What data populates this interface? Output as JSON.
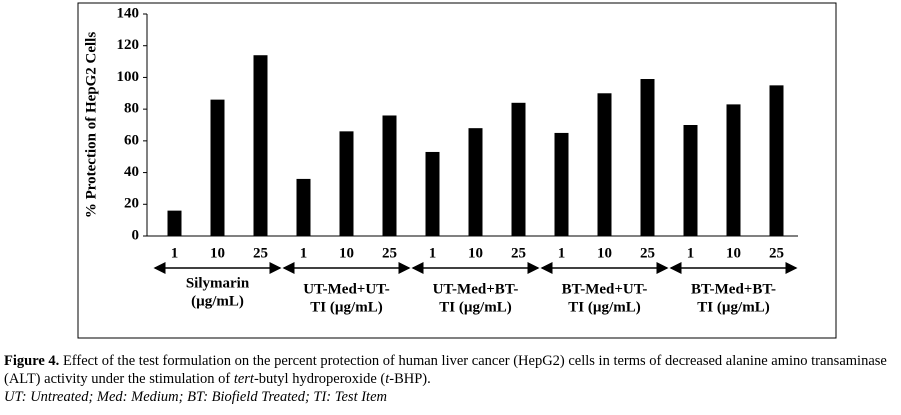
{
  "chart_data": {
    "type": "bar",
    "y_label": "% Protection of HepG2 Cells",
    "categories": [
      "1",
      "10",
      "25",
      "1",
      "10",
      "25",
      "1",
      "10",
      "25",
      "1",
      "10",
      "25",
      "1",
      "10",
      "25"
    ],
    "values": [
      16,
      86,
      114,
      36,
      66,
      76,
      53,
      68,
      84,
      65,
      90,
      99,
      70,
      83,
      95
    ],
    "groups": [
      [
        "Silymarin",
        "(µg/mL)"
      ],
      [
        "UT-Med+UT-",
        "TI (µg/mL)"
      ],
      [
        "UT-Med+BT-",
        "TI (µg/mL)"
      ],
      [
        "BT-Med+UT-",
        "TI (µg/mL)"
      ],
      [
        "BT-Med+BT-",
        "TI (µg/mL)"
      ]
    ],
    "color": "#000000",
    "ylim": [
      0,
      140
    ],
    "yticks": [
      0,
      20,
      40,
      60,
      80,
      100,
      120,
      140
    ]
  },
  "caption": {
    "label": "Figure 4.",
    "parts": [
      {
        "text": " Effect of the test formulation on the percent protection of human liver cancer (HepG2) cells in terms of decreased alanine amino transaminase (ALT) activity under the stimulation of ",
        "italic": false
      },
      {
        "text": "tert",
        "italic": true
      },
      {
        "text": "-butyl hydroperoxide (",
        "italic": false
      },
      {
        "text": "t",
        "italic": true
      },
      {
        "text": "-BHP).",
        "italic": false
      }
    ],
    "footnote": "UT: Untreated; Med: Medium; BT: Biofield Treated; TI: Test Item"
  }
}
